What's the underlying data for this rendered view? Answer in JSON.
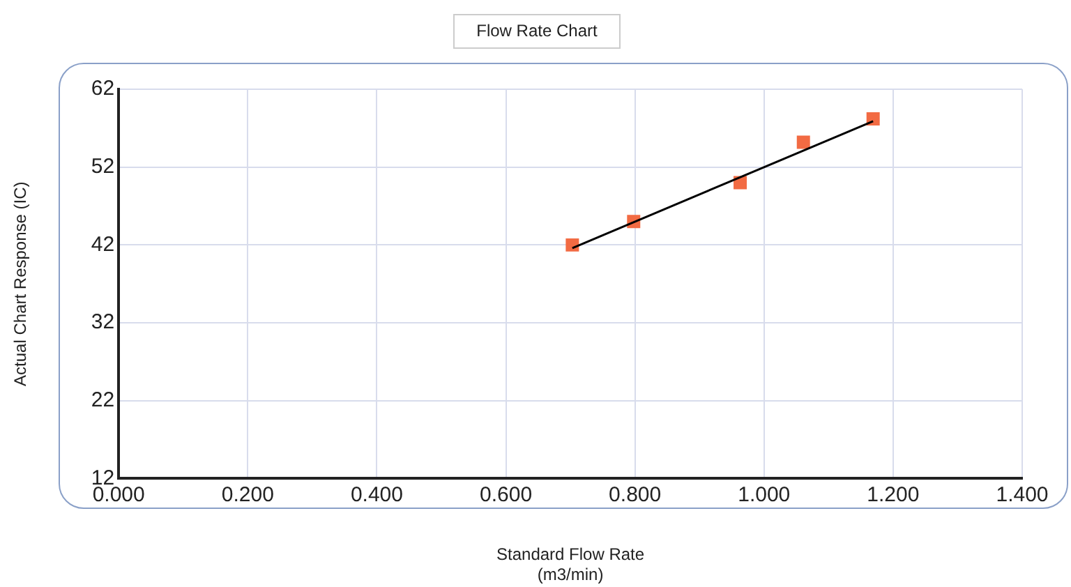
{
  "chart_data": {
    "type": "scatter",
    "title": "Flow Rate Chart",
    "xlabel": "Standard Flow Rate\n(m3/min)",
    "ylabel": "Actual Chart Response (IC)",
    "series": [
      {
        "type": "scatter",
        "color": "#f26b43",
        "marker": "square",
        "x": [
          0.703,
          0.798,
          0.963,
          1.061,
          1.169
        ],
        "values": [
          42,
          45,
          50,
          55.2,
          58.2
        ]
      },
      {
        "type": "line",
        "color": "#000000",
        "marker": "none",
        "line_style": "solid",
        "x": [
          0.703,
          1.169
        ],
        "values": [
          41.6,
          57.9
        ]
      }
    ],
    "xlim": [
      0,
      1.4
    ],
    "xticks": [
      {
        "value": 0,
        "label": "0.000"
      },
      {
        "value": 0.2,
        "label": "0.200"
      },
      {
        "value": 0.4,
        "label": "0.400"
      },
      {
        "value": 0.6,
        "label": "0.600"
      },
      {
        "value": 0.8,
        "label": "0.800"
      },
      {
        "value": 1,
        "label": "1.000"
      },
      {
        "value": 1.2,
        "label": "1.200"
      },
      {
        "value": 1.4,
        "label": "1.400"
      }
    ],
    "ylim": [
      12,
      62
    ],
    "yticks": [
      12,
      22,
      32,
      42,
      52,
      62
    ],
    "grid": true,
    "legend": false
  }
}
